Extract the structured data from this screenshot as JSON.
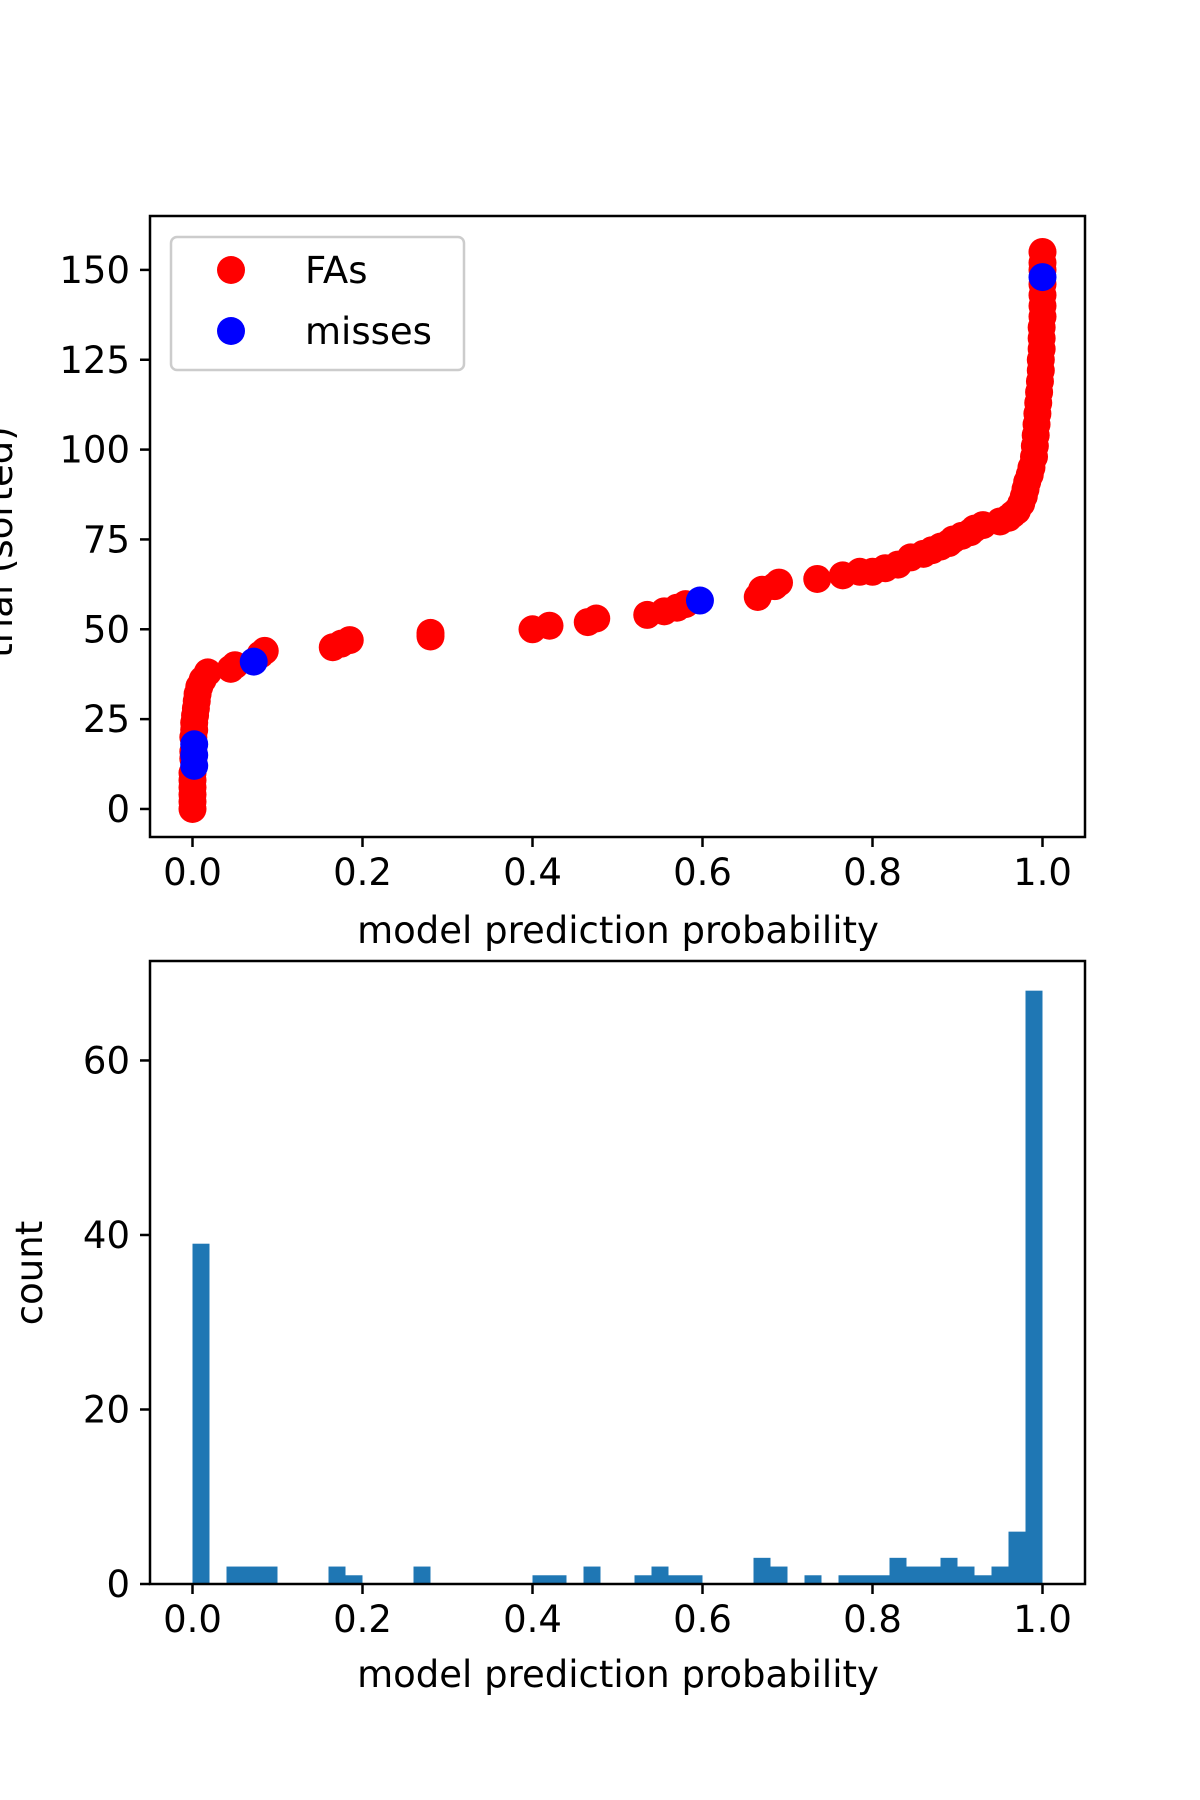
{
  "chart_data": [
    {
      "type": "scatter",
      "xlabel": "model prediction probability",
      "ylabel": "trial (sorted)",
      "xlim": [
        -0.05,
        1.05
      ],
      "ylim": [
        -7.8,
        165
      ],
      "xticks": [
        "0.0",
        "0.2",
        "0.4",
        "0.6",
        "0.8",
        "1.0"
      ],
      "yticks": [
        "0",
        "25",
        "50",
        "75",
        "100",
        "125",
        "150"
      ],
      "grid": false,
      "legend": {
        "placement": "top-left",
        "entries": [
          "FAs",
          "misses"
        ]
      },
      "series": [
        {
          "name": "FAs",
          "color": "#ff0000",
          "points": [
            [
              0.0,
              0
            ],
            [
              0.0,
              2
            ],
            [
              0.0,
              4
            ],
            [
              0.0,
              6
            ],
            [
              0.0,
              8
            ],
            [
              0.0,
              10
            ],
            [
              0.001,
              14
            ],
            [
              0.001,
              16
            ],
            [
              0.001,
              20
            ],
            [
              0.002,
              22
            ],
            [
              0.002,
              24
            ],
            [
              0.003,
              26
            ],
            [
              0.004,
              28
            ],
            [
              0.005,
              30
            ],
            [
              0.006,
              32
            ],
            [
              0.008,
              34
            ],
            [
              0.012,
              36
            ],
            [
              0.018,
              38
            ],
            [
              0.045,
              39
            ],
            [
              0.05,
              40
            ],
            [
              0.08,
              43
            ],
            [
              0.085,
              44
            ],
            [
              0.165,
              45
            ],
            [
              0.175,
              46
            ],
            [
              0.185,
              47
            ],
            [
              0.28,
              48
            ],
            [
              0.28,
              49
            ],
            [
              0.4,
              50
            ],
            [
              0.42,
              51
            ],
            [
              0.465,
              52
            ],
            [
              0.475,
              53
            ],
            [
              0.535,
              54
            ],
            [
              0.555,
              55
            ],
            [
              0.57,
              56
            ],
            [
              0.58,
              57
            ],
            [
              0.665,
              59
            ],
            [
              0.67,
              61
            ],
            [
              0.685,
              62
            ],
            [
              0.69,
              63
            ],
            [
              0.735,
              64
            ],
            [
              0.765,
              65
            ],
            [
              0.785,
              66
            ],
            [
              0.8,
              66
            ],
            [
              0.815,
              67
            ],
            [
              0.83,
              68
            ],
            [
              0.845,
              70
            ],
            [
              0.86,
              71
            ],
            [
              0.87,
              72
            ],
            [
              0.88,
              73
            ],
            [
              0.89,
              74
            ],
            [
              0.895,
              75
            ],
            [
              0.905,
              76
            ],
            [
              0.915,
              77
            ],
            [
              0.92,
              78
            ],
            [
              0.93,
              79
            ],
            [
              0.95,
              80
            ],
            [
              0.96,
              81
            ],
            [
              0.965,
              82
            ],
            [
              0.97,
              83
            ],
            [
              0.975,
              85
            ],
            [
              0.978,
              87
            ],
            [
              0.98,
              89
            ],
            [
              0.982,
              91
            ],
            [
              0.985,
              93
            ],
            [
              0.987,
              95
            ],
            [
              0.99,
              98
            ],
            [
              0.991,
              101
            ],
            [
              0.992,
              104
            ],
            [
              0.993,
              107
            ],
            [
              0.994,
              110
            ],
            [
              0.995,
              113
            ],
            [
              0.996,
              116
            ],
            [
              0.997,
              119
            ],
            [
              0.998,
              122
            ],
            [
              0.998,
              125
            ],
            [
              0.999,
              128
            ],
            [
              0.999,
              131
            ],
            [
              0.999,
              134
            ],
            [
              1.0,
              137
            ],
            [
              1.0,
              140
            ],
            [
              1.0,
              143
            ],
            [
              1.0,
              146
            ],
            [
              1.0,
              150
            ],
            [
              1.0,
              152
            ],
            [
              1.0,
              155
            ]
          ]
        },
        {
          "name": "misses",
          "color": "#0000ff",
          "points": [
            [
              0.002,
              12
            ],
            [
              0.002,
              15
            ],
            [
              0.002,
              18
            ],
            [
              0.072,
              41
            ],
            [
              0.597,
              58
            ],
            [
              1.0,
              148
            ]
          ]
        }
      ]
    },
    {
      "type": "bar",
      "xlabel": "model prediction probability",
      "ylabel": "count",
      "xlim": [
        -0.05,
        1.05
      ],
      "ylim": [
        0,
        71.4
      ],
      "xticks": [
        "0.0",
        "0.2",
        "0.4",
        "0.6",
        "0.8",
        "1.0"
      ],
      "yticks": [
        "0",
        "20",
        "40",
        "60"
      ],
      "grid": false,
      "color": "#1f77b4",
      "bin_width": 0.02,
      "bins": [
        [
          0.0,
          39
        ],
        [
          0.04,
          2
        ],
        [
          0.06,
          2
        ],
        [
          0.08,
          2
        ],
        [
          0.16,
          2
        ],
        [
          0.18,
          1
        ],
        [
          0.26,
          2
        ],
        [
          0.4,
          1
        ],
        [
          0.42,
          1
        ],
        [
          0.46,
          2
        ],
        [
          0.52,
          1
        ],
        [
          0.54,
          2
        ],
        [
          0.56,
          1
        ],
        [
          0.58,
          1
        ],
        [
          0.66,
          3
        ],
        [
          0.68,
          2
        ],
        [
          0.72,
          1
        ],
        [
          0.76,
          1
        ],
        [
          0.78,
          1
        ],
        [
          0.8,
          1
        ],
        [
          0.82,
          3
        ],
        [
          0.84,
          2
        ],
        [
          0.86,
          2
        ],
        [
          0.88,
          3
        ],
        [
          0.9,
          2
        ],
        [
          0.92,
          1
        ],
        [
          0.94,
          2
        ],
        [
          0.96,
          6
        ],
        [
          0.98,
          68
        ]
      ]
    }
  ]
}
